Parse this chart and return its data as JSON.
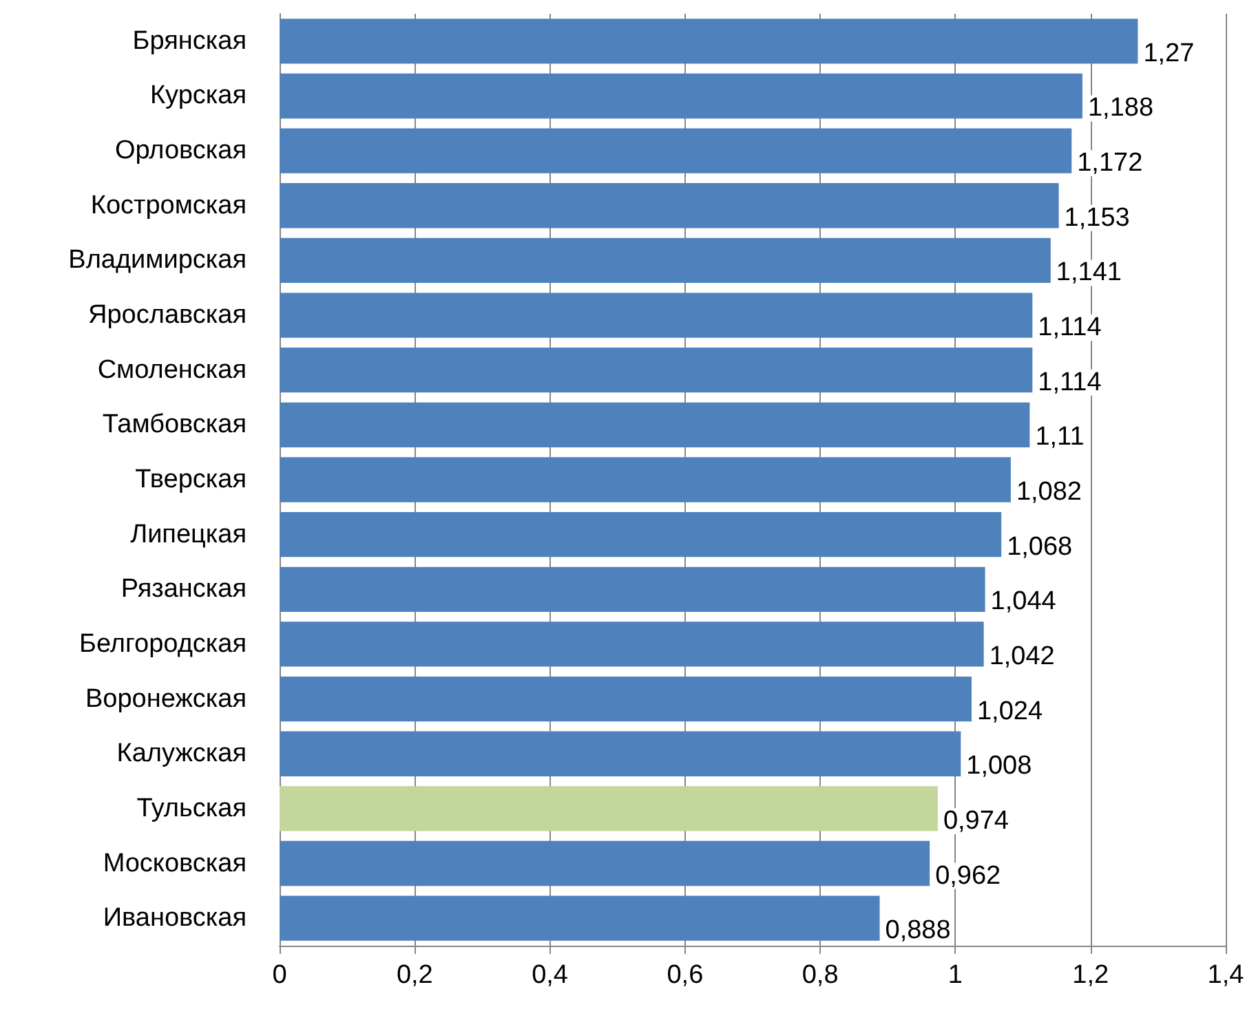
{
  "chart_data": {
    "type": "bar",
    "orientation": "horizontal",
    "categories": [
      "Брянская",
      "Курская",
      "Орловская",
      "Костромская",
      "Владимирская",
      "Ярославская",
      "Смоленская",
      "Тамбовская",
      "Тверская",
      "Липецкая",
      "Рязанская",
      "Белгородская",
      "Воронежская",
      "Калужская",
      "Тульская",
      "Московская",
      "Ивановская"
    ],
    "values": [
      1.27,
      1.188,
      1.172,
      1.153,
      1.141,
      1.114,
      1.114,
      1.11,
      1.082,
      1.068,
      1.044,
      1.042,
      1.024,
      1.008,
      0.974,
      0.962,
      0.888
    ],
    "value_labels": [
      "1,27",
      "1,188",
      "1,172",
      "1,153",
      "1,141",
      "1,114",
      "1,114",
      "1,11",
      "1,082",
      "1,068",
      "1,044",
      "1,042",
      "1,024",
      "1,008",
      "0,974",
      "0,962",
      "0,888"
    ],
    "colors": [
      "#4f81bd",
      "#4f81bd",
      "#4f81bd",
      "#4f81bd",
      "#4f81bd",
      "#4f81bd",
      "#4f81bd",
      "#4f81bd",
      "#4f81bd",
      "#4f81bd",
      "#4f81bd",
      "#4f81bd",
      "#4f81bd",
      "#4f81bd",
      "#c3d69b",
      "#4f81bd",
      "#4f81bd"
    ],
    "xlim": [
      0,
      1.4
    ],
    "xticks": [
      0,
      {
        "value": 0.2,
        "label": "0,2"
      },
      {
        "value": 0.4,
        "label": "0,4"
      },
      {
        "value": 0.6,
        "label": "0,6"
      },
      {
        "value": 0.8,
        "label": "0,8"
      },
      1,
      {
        "value": 1.2,
        "label": "1,2"
      },
      {
        "value": 1.4,
        "label": "1,4"
      }
    ],
    "grid": "x"
  }
}
